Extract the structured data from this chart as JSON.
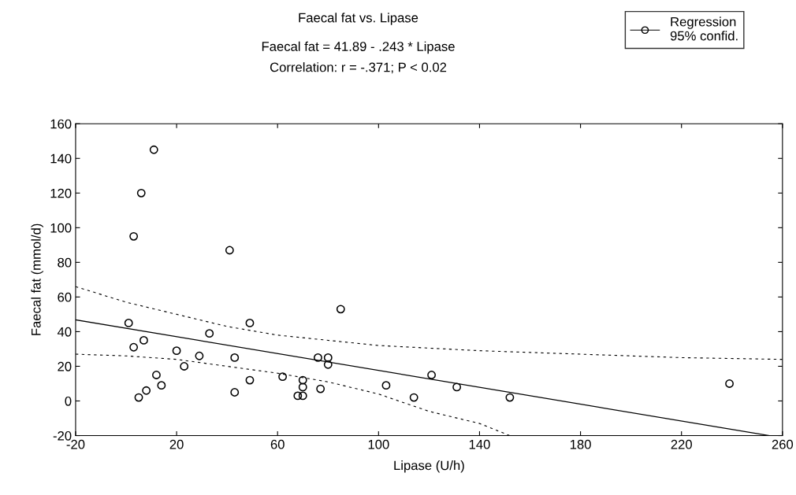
{
  "chart_data": {
    "type": "scatter",
    "title": "Faecal fat vs. Lipase",
    "subtitle": "Faecal fat = 41.89 - .243 * Lipase\nCorrelation: r = -.371; P < 0.02",
    "xlabel": "Lipase (U/h)",
    "ylabel": "Faecal fat (mmol/d)",
    "xlim": [
      -20,
      260
    ],
    "xticks": [
      -20,
      20,
      60,
      100,
      140,
      180,
      220,
      260
    ],
    "ylim": [
      -20,
      160
    ],
    "yticks": [
      -20,
      0,
      20,
      40,
      60,
      80,
      100,
      120,
      140,
      160
    ],
    "grid": false,
    "legend": "top right",
    "series": [
      {
        "name": "Regression\n95% confid.",
        "marker": "circle",
        "color": "#000000",
        "x": [
          1,
          3,
          7,
          3,
          6,
          11,
          5,
          8,
          12,
          14,
          20,
          23,
          29,
          33,
          41,
          43,
          43,
          49,
          49,
          62,
          68,
          70,
          70,
          70,
          76,
          77,
          80,
          80,
          85,
          103,
          114,
          121,
          131,
          152,
          239
        ],
        "values": [
          45,
          31,
          35,
          95,
          120,
          145,
          2,
          6,
          15,
          9,
          29,
          20,
          26,
          39,
          87,
          25,
          5,
          12,
          45,
          14,
          3,
          3,
          12,
          8,
          25,
          7,
          25,
          21,
          53,
          9,
          2,
          15,
          8,
          2,
          10
        ]
      },
      {
        "type": "line",
        "color": "#000000",
        "line_style": "solid",
        "x": [
          -20,
          254.7
        ],
        "values": [
          46.8,
          -20
        ]
      },
      {
        "type": "line",
        "color": "#000000",
        "line_style": "dashed",
        "x": [
          -20,
          0,
          20,
          40,
          60,
          80,
          100,
          140,
          180,
          220,
          260
        ],
        "values": [
          66,
          57,
          50,
          43,
          38,
          35,
          32,
          29,
          27,
          25,
          24
        ]
      },
      {
        "type": "line",
        "color": "#000000",
        "line_style": "dashed",
        "x": [
          -20,
          0,
          20,
          40,
          60,
          80,
          100,
          120,
          140,
          152
        ],
        "values": [
          27,
          26,
          24,
          20,
          16,
          11,
          4,
          -6,
          -13,
          -20
        ]
      }
    ]
  }
}
